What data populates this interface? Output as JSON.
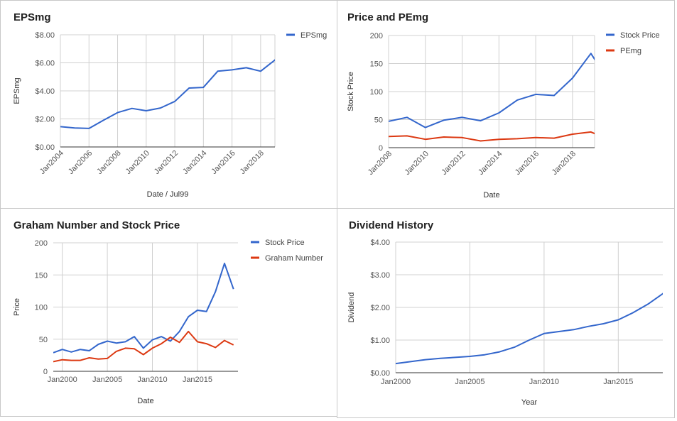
{
  "chart_data": [
    {
      "type": "line",
      "title": "EPSmg",
      "xlabel": "Date / Jul99",
      "ylabel": "EPSmg",
      "ylim": [
        0,
        8
      ],
      "xlim": [
        2004,
        2019
      ],
      "x_ticks": [
        "Jan2004",
        "Jan2006",
        "Jan2008",
        "Jan2010",
        "Jan2012",
        "Jan2014",
        "Jan2016",
        "Jan2018"
      ],
      "y_ticks": [
        "$0.00",
        "$2.00",
        "$4.00",
        "$6.00",
        "$8.00"
      ],
      "legend_position": "top-right",
      "grid": true,
      "series": [
        {
          "name": "EPSmg",
          "color": "#3366cc",
          "x": [
            2004,
            2005,
            2006,
            2007,
            2008,
            2009,
            2010,
            2011,
            2012,
            2013,
            2014,
            2015,
            2016,
            2017,
            2018,
            2019
          ],
          "values": [
            1.45,
            1.35,
            1.32,
            1.9,
            2.45,
            2.75,
            2.58,
            2.78,
            3.25,
            4.2,
            4.25,
            5.4,
            5.5,
            5.65,
            5.4,
            6.2
          ]
        },
        {
          "name": "",
          "color": "#3366cc",
          "x": [
            2019,
            2019.5
          ],
          "values": [
            6.2,
            6.7
          ],
          "legend": false
        }
      ]
    },
    {
      "type": "line",
      "title": "Price and PEmg",
      "xlabel": "Date",
      "ylabel": "Stock Price",
      "ylim": [
        0,
        200
      ],
      "xlim": [
        2008,
        2019.2
      ],
      "x_ticks": [
        "Jan2008",
        "Jan2010",
        "Jan2012",
        "Jan2014",
        "Jan2016",
        "Jan2018"
      ],
      "y_ticks": [
        "0",
        "50",
        "100",
        "150",
        "200"
      ],
      "legend_position": "top-right",
      "grid": true,
      "series": [
        {
          "name": "Stock Price",
          "color": "#3366cc",
          "x": [
            2008,
            2009,
            2010,
            2011,
            2012,
            2013,
            2014,
            2015,
            2016,
            2017,
            2018,
            2019,
            2019.35
          ],
          "values": [
            47,
            54,
            36,
            49,
            54,
            48,
            62,
            85,
            95,
            93,
            124,
            168,
            150
          ]
        },
        {
          "name": "PEmg",
          "color": "#dc3912",
          "x": [
            2008,
            2009,
            2010,
            2011,
            2012,
            2013,
            2014,
            2015,
            2016,
            2017,
            2018,
            2019,
            2019.35
          ],
          "values": [
            20,
            21,
            15,
            19,
            18,
            12,
            15,
            16,
            18,
            17,
            24,
            28,
            23
          ]
        }
      ]
    },
    {
      "type": "line",
      "title": "Graham Number and Stock Price",
      "xlabel": "Date",
      "ylabel": "Price",
      "ylim": [
        0,
        200
      ],
      "xlim": [
        1999,
        2019.5
      ],
      "x_ticks": [
        "Jan2000",
        "Jan2005",
        "Jan2010",
        "Jan2015"
      ],
      "y_ticks": [
        "0",
        "50",
        "100",
        "150",
        "200"
      ],
      "legend_position": "top-right",
      "grid": true,
      "series": [
        {
          "name": "Stock Price",
          "color": "#3366cc",
          "x": [
            1999,
            2000,
            2001,
            2002,
            2003,
            2004,
            2005,
            2006,
            2007,
            2008,
            2009,
            2010,
            2011,
            2012,
            2013,
            2014,
            2015,
            2016,
            2017,
            2018,
            2019
          ],
          "values": [
            29,
            34,
            30,
            34,
            32,
            42,
            47,
            44,
            46,
            54,
            36,
            49,
            54,
            47,
            62,
            85,
            95,
            93,
            124,
            168,
            128
          ]
        },
        {
          "name": "Graham Number",
          "color": "#dc3912",
          "x": [
            1999,
            2000,
            2001,
            2002,
            2003,
            2004,
            2005,
            2006,
            2007,
            2008,
            2009,
            2010,
            2011,
            2012,
            2013,
            2014,
            2015,
            2016,
            2017,
            2018,
            2019
          ],
          "values": [
            15,
            18,
            17,
            17,
            21,
            19,
            20,
            31,
            36,
            35,
            26,
            36,
            43,
            53,
            45,
            62,
            46,
            43,
            37,
            48,
            41
          ]
        }
      ]
    },
    {
      "type": "line",
      "title": "Dividend History",
      "xlabel": "Year",
      "ylabel": "Dividend",
      "ylim": [
        0,
        4
      ],
      "xlim": [
        2000,
        2018
      ],
      "x_ticks": [
        "Jan2000",
        "Jan2005",
        "Jan2010",
        "Jan2015"
      ],
      "y_ticks": [
        "$0.00",
        "$1.00",
        "$2.00",
        "$3.00",
        "$4.00"
      ],
      "legend_position": "none",
      "grid": true,
      "series": [
        {
          "name": "",
          "color": "#3366cc",
          "x": [
            2000,
            2001,
            2002,
            2003,
            2004,
            2005,
            2006,
            2007,
            2008,
            2009,
            2010,
            2011,
            2012,
            2013,
            2014,
            2015,
            2016,
            2017,
            2018,
            2018.9
          ],
          "values": [
            0.28,
            0.34,
            0.4,
            0.44,
            0.47,
            0.5,
            0.55,
            0.64,
            0.78,
            1.0,
            1.2,
            1.26,
            1.32,
            1.42,
            1.5,
            1.62,
            1.84,
            2.1,
            2.42,
            2.88
          ]
        }
      ]
    }
  ]
}
